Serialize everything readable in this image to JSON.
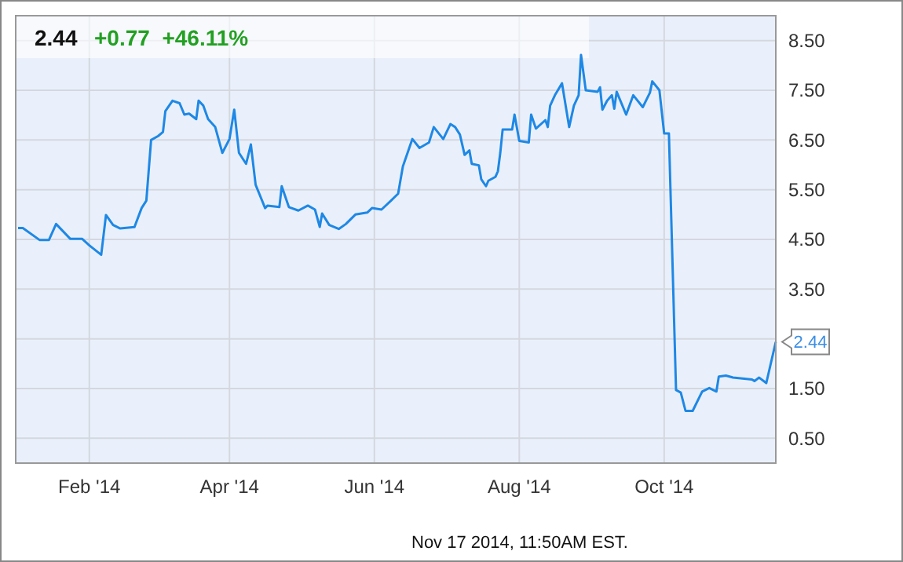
{
  "chart_data": {
    "type": "line",
    "title": "2.44",
    "subtitle": "+0.77  +46.11%",
    "annotations": [
      {
        "text": "2.44",
        "x": "2014-11-17",
        "y": 2.44
      },
      "Nov 17 2014, 11:50AM EST."
    ],
    "xlim": [
      "2014-01-01",
      "2014-11-17"
    ],
    "xticks": [
      {
        "value": "2014-02-01",
        "label": "Feb '14"
      },
      {
        "value": "2014-04-01",
        "label": "Apr '14"
      },
      {
        "value": "2014-06-01",
        "label": "Jun '14"
      },
      {
        "value": "2014-08-01",
        "label": "Aug '14"
      },
      {
        "value": "2014-10-01",
        "label": "Oct '14"
      }
    ],
    "ylim": [
      0,
      9
    ],
    "yticks": [
      {
        "value": 0.5,
        "label": "0.50"
      },
      {
        "value": 1.5,
        "label": "1.50"
      },
      {
        "value": 2.5,
        "label": null
      },
      {
        "value": 3.5,
        "label": "3.50"
      },
      {
        "value": 4.5,
        "label": "4.50"
      },
      {
        "value": 5.5,
        "label": "5.50"
      },
      {
        "value": 6.5,
        "label": "6.50"
      },
      {
        "value": 7.5,
        "label": "7.50"
      },
      {
        "value": 8.5,
        "label": "8.50"
      }
    ],
    "grid": true,
    "marker": "none",
    "line_style": "solid",
    "series": [
      {
        "color": "#1e88e5",
        "x": [
          "2014-01-02",
          "2014-01-04",
          "2014-01-11",
          "2014-01-15",
          "2014-01-18",
          "2014-01-24",
          "2014-01-29",
          "2014-02-01",
          "2014-02-06",
          "2014-02-08",
          "2014-02-11",
          "2014-02-14",
          "2014-02-20",
          "2014-02-23",
          "2014-02-25",
          "2014-02-27",
          "2014-03-02",
          "2014-03-04",
          "2014-03-05",
          "2014-03-08",
          "2014-03-11",
          "2014-03-13",
          "2014-03-15",
          "2014-03-18",
          "2014-03-19",
          "2014-03-21",
          "2014-03-23",
          "2014-03-26",
          "2014-03-29",
          "2014-04-01",
          "2014-04-03",
          "2014-04-05",
          "2014-04-08",
          "2014-04-10",
          "2014-04-12",
          "2014-04-16",
          "2014-04-17",
          "2014-04-22",
          "2014-04-23",
          "2014-04-26",
          "2014-04-30",
          "2014-05-04",
          "2014-05-07",
          "2014-05-09",
          "2014-05-10",
          "2014-05-13",
          "2014-05-17",
          "2014-05-20",
          "2014-05-24",
          "2014-05-29",
          "2014-05-31",
          "2014-06-04",
          "2014-06-08",
          "2014-06-11",
          "2014-06-13",
          "2014-06-17",
          "2014-06-20",
          "2014-06-24",
          "2014-06-26",
          "2014-06-30",
          "2014-07-03",
          "2014-07-05",
          "2014-07-07",
          "2014-07-09",
          "2014-07-11",
          "2014-07-12",
          "2014-07-15",
          "2014-07-16",
          "2014-07-18",
          "2014-07-19",
          "2014-07-22",
          "2014-07-23",
          "2014-07-24",
          "2014-07-25",
          "2014-07-29",
          "2014-07-30",
          "2014-08-01",
          "2014-08-05",
          "2014-08-06",
          "2014-08-08",
          "2014-08-12",
          "2014-08-13",
          "2014-08-14",
          "2014-08-16",
          "2014-08-19",
          "2014-08-22",
          "2014-08-24",
          "2014-08-26",
          "2014-08-27",
          "2014-08-29",
          "2014-09-03",
          "2014-09-04",
          "2014-09-05",
          "2014-09-07",
          "2014-09-09",
          "2014-09-10",
          "2014-09-11",
          "2014-09-15",
          "2014-09-18",
          "2014-09-22",
          "2014-09-25",
          "2014-09-26",
          "2014-09-29",
          "2014-10-01",
          "2014-10-03",
          "2014-10-06",
          "2014-10-08",
          "2014-10-10",
          "2014-10-13",
          "2014-10-17",
          "2014-10-20",
          "2014-10-23",
          "2014-10-24",
          "2014-10-27",
          "2014-10-30",
          "2014-11-07",
          "2014-11-08",
          "2014-11-10",
          "2014-11-13",
          "2014-11-17"
        ],
        "values": [
          4.73,
          4.73,
          4.49,
          4.49,
          4.81,
          4.51,
          4.51,
          4.38,
          4.19,
          4.99,
          4.79,
          4.72,
          4.75,
          5.13,
          5.28,
          6.5,
          6.58,
          6.66,
          7.08,
          7.29,
          7.24,
          7.01,
          7.03,
          6.92,
          7.29,
          7.19,
          6.92,
          6.76,
          6.24,
          6.52,
          7.11,
          6.24,
          6.02,
          6.41,
          5.6,
          5.13,
          5.18,
          5.15,
          5.57,
          5.15,
          5.08,
          5.18,
          5.1,
          4.75,
          5.02,
          4.79,
          4.71,
          4.81,
          5.0,
          5.04,
          5.13,
          5.1,
          5.28,
          5.42,
          5.97,
          6.52,
          6.34,
          6.45,
          6.76,
          6.52,
          6.82,
          6.76,
          6.61,
          6.2,
          6.29,
          6.02,
          5.99,
          5.71,
          5.57,
          5.68,
          5.76,
          5.87,
          6.24,
          6.71,
          6.71,
          7.01,
          6.48,
          6.45,
          7.01,
          6.73,
          6.9,
          6.76,
          7.19,
          7.4,
          7.64,
          6.76,
          7.19,
          7.4,
          8.21,
          7.5,
          7.47,
          7.56,
          7.11,
          7.29,
          7.4,
          7.13,
          7.47,
          7.01,
          7.4,
          7.16,
          7.45,
          7.68,
          7.5,
          6.63,
          6.63,
          1.47,
          1.42,
          1.05,
          1.05,
          1.44,
          1.51,
          1.44,
          1.74,
          1.76,
          1.72,
          1.68,
          1.65,
          1.72,
          1.61,
          2.44
        ]
      }
    ]
  }
}
